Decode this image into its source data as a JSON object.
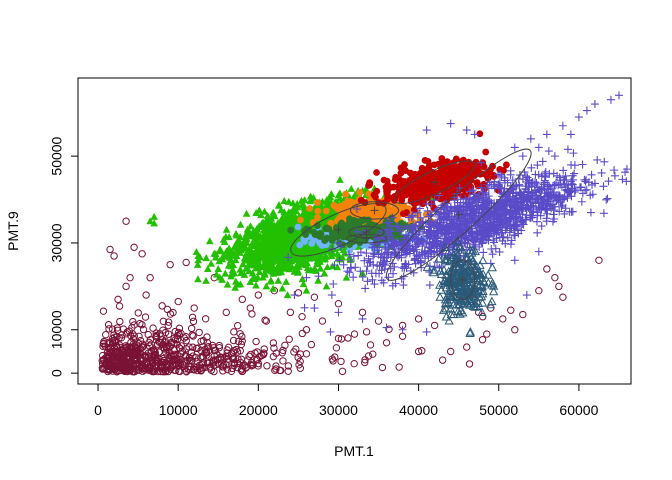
{
  "chart_data": {
    "type": "scatter",
    "xlabel": "PMT.1",
    "ylabel": "PMT.9",
    "xlim": [
      -2500,
      66500
    ],
    "ylim": [
      -2500,
      68000
    ],
    "xticks": [
      0,
      10000,
      20000,
      30000,
      40000,
      50000,
      60000
    ],
    "xtick_labels": [
      "0",
      "10000",
      "20000",
      "30000",
      "40000",
      "50000",
      "60000"
    ],
    "yticks": [
      0,
      10000,
      30000,
      50000
    ],
    "ytick_labels": [
      "0",
      "10000",
      "30000",
      "50000"
    ],
    "grid": false,
    "series": [
      {
        "key": "s1",
        "color": "#7a1236",
        "marker": "circle-open",
        "center": [
          15000,
          5000
        ],
        "spread": [
          14000,
          6000
        ],
        "count": 650,
        "points": [
          [
            3500,
            35000
          ],
          [
            1500,
            28500
          ],
          [
            2000,
            27000
          ],
          [
            4500,
            29000
          ],
          [
            5500,
            27500
          ],
          [
            6500,
            22000
          ],
          [
            4000,
            22000
          ],
          [
            3500,
            20000
          ],
          [
            9000,
            25000
          ],
          [
            11000,
            25500
          ],
          [
            14500,
            22000
          ],
          [
            6000,
            18000
          ],
          [
            2500,
            17000
          ],
          [
            8000,
            15500
          ],
          [
            12000,
            15000
          ],
          [
            16000,
            14000
          ],
          [
            18000,
            17000
          ],
          [
            20000,
            18000
          ],
          [
            22000,
            19000
          ],
          [
            25000,
            18500
          ],
          [
            27000,
            17500
          ],
          [
            30000,
            16000
          ],
          [
            33000,
            14000
          ],
          [
            35000,
            12000
          ],
          [
            38000,
            11000
          ],
          [
            40000,
            12500
          ],
          [
            42000,
            11000
          ],
          [
            47000,
            17000
          ],
          [
            47500,
            14000
          ],
          [
            48000,
            13000
          ],
          [
            49000,
            15000
          ],
          [
            50500,
            12500
          ],
          [
            51500,
            14500
          ],
          [
            53000,
            13500
          ],
          [
            55000,
            19000
          ],
          [
            56000,
            24000
          ],
          [
            57000,
            22000
          ],
          [
            57500,
            20000
          ],
          [
            58000,
            17500
          ],
          [
            62500,
            26000
          ],
          [
            44000,
            5000
          ],
          [
            46000,
            6000
          ],
          [
            43000,
            3000
          ],
          [
            48500,
            9000
          ],
          [
            52000,
            10000
          ],
          [
            36000,
            7000
          ],
          [
            32000,
            9000
          ],
          [
            38000,
            8500
          ],
          [
            40000,
            5000
          ],
          [
            28000,
            12000
          ],
          [
            24000,
            14000
          ],
          [
            19000,
            15000
          ],
          [
            21000,
            12000
          ],
          [
            26000,
            10000
          ],
          [
            30000,
            8000
          ],
          [
            34000,
            6500
          ]
        ]
      },
      {
        "key": "s2",
        "color": "#22c000",
        "marker": "triangle-filled",
        "center": [
          26000,
          31500
        ],
        "spread": [
          5000,
          3500
        ],
        "count": 1800,
        "angle": 0.5,
        "points": [
          [
            7000,
            36000
          ],
          [
            6500,
            35000
          ],
          [
            7000,
            34500
          ],
          [
            12500,
            26000
          ],
          [
            13500,
            26500
          ],
          [
            14500,
            27500
          ],
          [
            16000,
            28000
          ],
          [
            17000,
            29000
          ],
          [
            18500,
            30000
          ],
          [
            19500,
            31500
          ],
          [
            21000,
            32500
          ],
          [
            22500,
            34000
          ],
          [
            24000,
            35500
          ],
          [
            25500,
            36500
          ],
          [
            27000,
            38000
          ],
          [
            28000,
            39500
          ],
          [
            29000,
            40500
          ],
          [
            30000,
            41000
          ],
          [
            31000,
            41500
          ],
          [
            33000,
            42000
          ],
          [
            34500,
            42500
          ],
          [
            36000,
            43000
          ],
          [
            37500,
            43000
          ],
          [
            15000,
            24000
          ],
          [
            17000,
            23000
          ],
          [
            19000,
            21000
          ],
          [
            21000,
            20000
          ],
          [
            23000,
            19500
          ],
          [
            26000,
            19000
          ],
          [
            28500,
            20000
          ],
          [
            31000,
            22000
          ],
          [
            33000,
            23000
          ]
        ]
      },
      {
        "key": "s3",
        "color": "#f5820a",
        "marker": "circle-filled",
        "center": [
          34000,
          37000
        ],
        "spread": [
          2800,
          1800
        ],
        "count": 260,
        "points": []
      },
      {
        "key": "s4",
        "color": "#6eb4ff",
        "marker": "circle-filled",
        "center": [
          32500,
          30800
        ],
        "spread": [
          3200,
          900
        ],
        "count": 180,
        "points": []
      },
      {
        "key": "s5",
        "color": "#2a7a2a",
        "marker": "circle-filled",
        "center": [
          32500,
          32500
        ],
        "spread": [
          2800,
          1200
        ],
        "count": 220,
        "points": []
      },
      {
        "key": "s6",
        "color": "#c40000",
        "marker": "circle-filled",
        "center": [
          42000,
          44000
        ],
        "spread": [
          3500,
          2200
        ],
        "count": 400,
        "angle": 0.35,
        "points": [
          [
            48000,
            48500
          ],
          [
            46000,
            48000
          ],
          [
            44000,
            47000
          ],
          [
            39500,
            39000
          ],
          [
            38500,
            37000
          ],
          [
            37000,
            40000
          ]
        ]
      },
      {
        "key": "s7",
        "color": "#5a4bc8",
        "marker": "plus",
        "center": [
          47000,
          35000
        ],
        "spread": [
          8000,
          4000
        ],
        "count": 1400,
        "angle": 0.6,
        "points": [
          [
            65000,
            64000
          ],
          [
            64000,
            63000
          ],
          [
            62000,
            62000
          ],
          [
            61000,
            60500
          ],
          [
            60000,
            59000
          ],
          [
            58000,
            57000
          ],
          [
            56000,
            55000
          ],
          [
            54000,
            54000
          ],
          [
            52000,
            52000
          ],
          [
            55000,
            52000
          ],
          [
            59000,
            55000
          ],
          [
            57000,
            50000
          ],
          [
            53000,
            50000
          ],
          [
            61500,
            37000
          ],
          [
            58000,
            40000
          ],
          [
            54500,
            42000
          ],
          [
            52000,
            40000
          ],
          [
            50000,
            43000
          ],
          [
            48000,
            41000
          ],
          [
            47000,
            55000
          ],
          [
            46000,
            56000
          ],
          [
            44000,
            57500
          ],
          [
            41000,
            56000
          ],
          [
            26000,
            22000
          ],
          [
            24500,
            18000
          ],
          [
            27000,
            15000
          ],
          [
            30000,
            14000
          ],
          [
            33000,
            12500
          ],
          [
            36000,
            10500
          ],
          [
            38000,
            10000
          ],
          [
            41000,
            9500
          ],
          [
            52000,
            26000
          ],
          [
            55000,
            28000
          ],
          [
            53500,
            18000
          ],
          [
            29000,
            9500
          ]
        ]
      },
      {
        "key": "s8",
        "color": "#2a5a7a",
        "marker": "triangle-open",
        "center": [
          45500,
          21000
        ],
        "spread": [
          1500,
          3800
        ],
        "count": 260,
        "points": []
      }
    ],
    "ellipses": [
      {
        "cx": 30000,
        "cy": 33000,
        "rx": 6500,
        "ry": 3600,
        "angle": 25
      },
      {
        "cx": 34500,
        "cy": 37500,
        "rx": 3000,
        "ry": 2000,
        "angle": 0
      },
      {
        "cx": 33500,
        "cy": 31000,
        "rx": 2500,
        "ry": 1000,
        "angle": 0
      },
      {
        "cx": 33500,
        "cy": 32500,
        "rx": 2200,
        "ry": 1300,
        "angle": 0
      },
      {
        "cx": 42000,
        "cy": 44000,
        "rx": 5500,
        "ry": 2600,
        "angle": 25
      },
      {
        "cx": 45000,
        "cy": 36500,
        "rx": 12000,
        "ry": 4000,
        "angle": 42
      },
      {
        "cx": 45500,
        "cy": 21500,
        "rx": 1500,
        "ry": 4500,
        "angle": 0
      }
    ]
  }
}
